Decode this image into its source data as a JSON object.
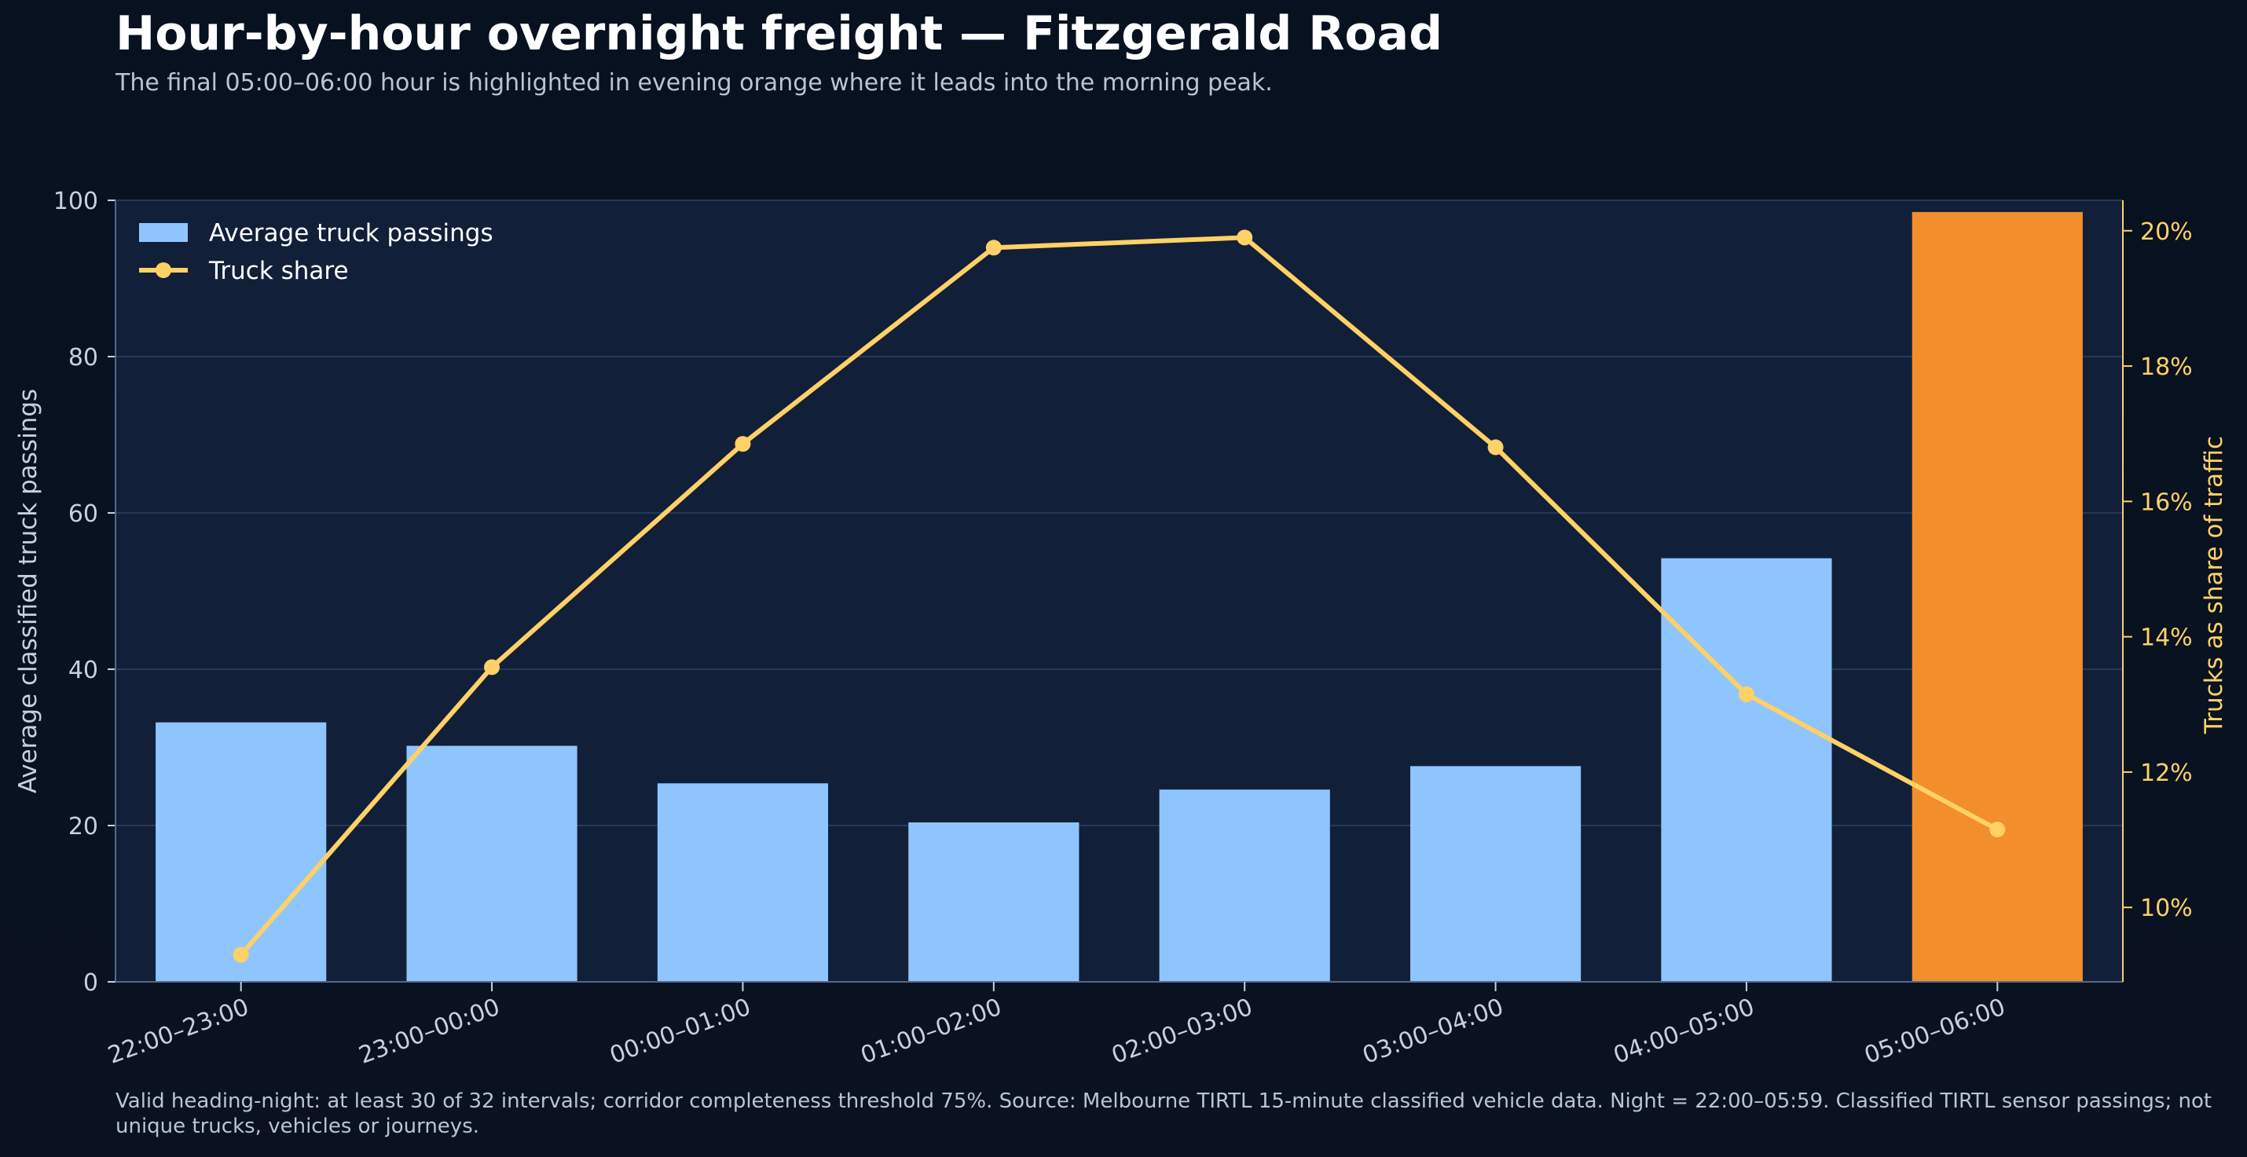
{
  "title": "Hour-by-hour overnight freight — Fitzgerald Road",
  "subtitle": "The final 05:00–06:00 hour is highlighted in evening orange where it leads into the morning peak.",
  "footnote": "Valid heading-night: at least 30 of 32 intervals; corridor completeness threshold 75%. Source: Melbourne TIRTL 15-minute classified vehicle data. Night = 22:00–05:59. Classified TIRTL sensor passings; not unique trucks, vehicles or journeys.",
  "colors": {
    "bar": "#8fc5ff",
    "highlight_bar": "#f28e2c",
    "line": "#ffd166",
    "plot_bg": "#111f38",
    "grid": "#26385a",
    "axis_text": "#c7d0dc"
  },
  "chart_data": {
    "type": "bar",
    "categories": [
      "22:00–23:00",
      "23:00–00:00",
      "00:00–01:00",
      "01:00–02:00",
      "02:00–03:00",
      "03:00–04:00",
      "04:00–05:00",
      "05:00–06:00"
    ],
    "highlight_index": 7,
    "series": [
      {
        "name": "Average truck passings",
        "type": "bar",
        "axis": "left",
        "values": [
          33.2,
          30.2,
          25.4,
          20.4,
          24.6,
          27.6,
          54.2,
          98.5
        ]
      },
      {
        "name": "Truck share",
        "type": "line",
        "axis": "right",
        "values": [
          9.3,
          13.55,
          16.85,
          19.75,
          19.9,
          16.8,
          13.15,
          11.15
        ]
      }
    ],
    "ylabel": "Average classified truck passings",
    "y2label": "Trucks as share of traffic",
    "ylim": [
      0,
      100
    ],
    "yticks": [
      0,
      20,
      40,
      60,
      80,
      100
    ],
    "y2lim": [
      8.9,
      20.45
    ],
    "y2ticks": [
      10,
      12,
      14,
      16,
      18,
      20
    ],
    "y2tick_suffix": "%",
    "grid": true,
    "legend_position": "top-left"
  }
}
